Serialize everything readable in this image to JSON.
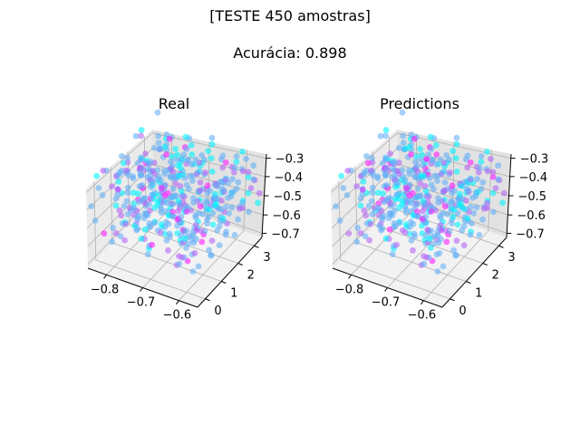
{
  "figure": {
    "suptitle_line1": "[TESTE 450 amostras]",
    "suptitle_line2": "Acurácia: 0.898"
  },
  "chart_data": [
    {
      "type": "scatter",
      "projection": "3d",
      "title": "Real",
      "x_ticks": [
        "−0.8",
        "−0.7",
        "−0.6"
      ],
      "y_ticks": [
        "0",
        "1",
        "2",
        "3"
      ],
      "z_ticks": [
        "−0.3",
        "−0.4",
        "−0.5",
        "−0.6",
        "−0.7"
      ],
      "xlim": [
        -0.85,
        -0.55
      ],
      "ylim": [
        -0.5,
        3.5
      ],
      "zlim": [
        -0.72,
        -0.28
      ],
      "n_points": 450,
      "colormap": "cool",
      "grid": true
    },
    {
      "type": "scatter",
      "projection": "3d",
      "title": "Predictions",
      "x_ticks": [
        "−0.8",
        "−0.7",
        "−0.6"
      ],
      "y_ticks": [
        "0",
        "1",
        "2",
        "3"
      ],
      "z_ticks": [
        "−0.3",
        "−0.4",
        "−0.5",
        "−0.6",
        "−0.7"
      ],
      "xlim": [
        -0.85,
        -0.55
      ],
      "ylim": [
        -0.5,
        3.5
      ],
      "zlim": [
        -0.72,
        -0.28
      ],
      "n_points": 450,
      "colormap": "cool",
      "grid": true
    }
  ],
  "colors": {
    "class_cyan": "#00f5ff",
    "class_blue": "#66b0f7",
    "class_purple": "#b566f7",
    "class_magenta": "#ff1aff",
    "pane_left": "#ebebeb",
    "pane_right": "#e2e2e2",
    "pane_bottom": "#f2f2f2",
    "grid": "#b0b0b0"
  }
}
